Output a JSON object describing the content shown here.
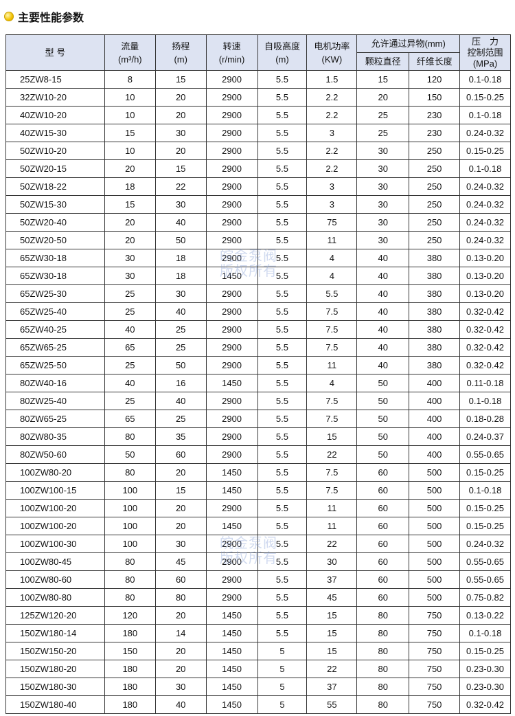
{
  "title": "主要性能参数",
  "headers": {
    "model": "型 号",
    "flow": "流量",
    "flow_unit": "(m³/h)",
    "head": "扬程",
    "head_unit": "(m)",
    "speed": "转速",
    "speed_unit": "(r/min)",
    "suction": "自吸高度",
    "suction_unit": "(m)",
    "power": "电机功率",
    "power_unit": "(KW)",
    "passage": "允许通过异物(mm)",
    "particle": "颗粒直径",
    "fiber": "纤维长度",
    "pressure": "压　力",
    "pressure2": "控制范围",
    "pressure_unit": "(MPa)"
  },
  "watermark": [
    "皖金泵阀",
    "版权所有"
  ],
  "rows": [
    [
      "25ZW8-15",
      "8",
      "15",
      "2900",
      "5.5",
      "1.5",
      "15",
      "120",
      "0.1-0.18"
    ],
    [
      "32ZW10-20",
      "10",
      "20",
      "2900",
      "5.5",
      "2.2",
      "20",
      "150",
      "0.15-0.25"
    ],
    [
      "40ZW10-20",
      "10",
      "20",
      "2900",
      "5.5",
      "2.2",
      "25",
      "230",
      "0.1-0.18"
    ],
    [
      "40ZW15-30",
      "15",
      "30",
      "2900",
      "5.5",
      "3",
      "25",
      "230",
      "0.24-0.32"
    ],
    [
      "50ZW10-20",
      "10",
      "20",
      "2900",
      "5.5",
      "2.2",
      "30",
      "250",
      "0.15-0.25"
    ],
    [
      "50ZW20-15",
      "20",
      "15",
      "2900",
      "5.5",
      "2.2",
      "30",
      "250",
      "0.1-0.18"
    ],
    [
      "50ZW18-22",
      "18",
      "22",
      "2900",
      "5.5",
      "3",
      "30",
      "250",
      "0.24-0.32"
    ],
    [
      "50ZW15-30",
      "15",
      "30",
      "2900",
      "5.5",
      "3",
      "30",
      "250",
      "0.24-0.32"
    ],
    [
      "50ZW20-40",
      "20",
      "40",
      "2900",
      "5.5",
      "75",
      "30",
      "250",
      "0.24-0.32"
    ],
    [
      "50ZW20-50",
      "20",
      "50",
      "2900",
      "5.5",
      "11",
      "30",
      "250",
      "0.24-0.32"
    ],
    [
      "65ZW30-18",
      "30",
      "18",
      "2900",
      "5.5",
      "4",
      "40",
      "380",
      "0.13-0.20"
    ],
    [
      "65ZW30-18",
      "30",
      "18",
      "1450",
      "5.5",
      "4",
      "40",
      "380",
      "0.13-0.20"
    ],
    [
      "65ZW25-30",
      "25",
      "30",
      "2900",
      "5.5",
      "5.5",
      "40",
      "380",
      "0.13-0.20"
    ],
    [
      "65ZW25-40",
      "25",
      "40",
      "2900",
      "5.5",
      "7.5",
      "40",
      "380",
      "0.32-0.42"
    ],
    [
      "65ZW40-25",
      "40",
      "25",
      "2900",
      "5.5",
      "7.5",
      "40",
      "380",
      "0.32-0.42"
    ],
    [
      "65ZW65-25",
      "65",
      "25",
      "2900",
      "5.5",
      "7.5",
      "40",
      "380",
      "0.32-0.42"
    ],
    [
      "65ZW25-50",
      "25",
      "50",
      "2900",
      "5.5",
      "11",
      "40",
      "380",
      "0.32-0.42"
    ],
    [
      "80ZW40-16",
      "40",
      "16",
      "1450",
      "5.5",
      "4",
      "50",
      "400",
      "0.11-0.18"
    ],
    [
      "80ZW25-40",
      "25",
      "40",
      "2900",
      "5.5",
      "7.5",
      "50",
      "400",
      "0.1-0.18"
    ],
    [
      "80ZW65-25",
      "65",
      "25",
      "2900",
      "5.5",
      "7.5",
      "50",
      "400",
      "0.18-0.28"
    ],
    [
      "80ZW80-35",
      "80",
      "35",
      "2900",
      "5.5",
      "15",
      "50",
      "400",
      "0.24-0.37"
    ],
    [
      "80ZW50-60",
      "50",
      "60",
      "2900",
      "5.5",
      "22",
      "50",
      "400",
      "0.55-0.65"
    ],
    [
      "100ZW80-20",
      "80",
      "20",
      "1450",
      "5.5",
      "7.5",
      "60",
      "500",
      "0.15-0.25"
    ],
    [
      "100ZW100-15",
      "100",
      "15",
      "1450",
      "5.5",
      "7.5",
      "60",
      "500",
      "0.1-0.18"
    ],
    [
      "100ZW100-20",
      "100",
      "20",
      "2900",
      "5.5",
      "11",
      "60",
      "500",
      "0.15-0.25"
    ],
    [
      "100ZW100-20",
      "100",
      "20",
      "1450",
      "5.5",
      "11",
      "60",
      "500",
      "0.15-0.25"
    ],
    [
      "100ZW100-30",
      "100",
      "30",
      "2900",
      "5.5",
      "22",
      "60",
      "500",
      "0.24-0.32"
    ],
    [
      "100ZW80-45",
      "80",
      "45",
      "2900",
      "5.5",
      "30",
      "60",
      "500",
      "0.55-0.65"
    ],
    [
      "100ZW80-60",
      "80",
      "60",
      "2900",
      "5.5",
      "37",
      "60",
      "500",
      "0.55-0.65"
    ],
    [
      "100ZW80-80",
      "80",
      "80",
      "2900",
      "5.5",
      "45",
      "60",
      "500",
      "0.75-0.82"
    ],
    [
      "125ZW120-20",
      "120",
      "20",
      "1450",
      "5.5",
      "15",
      "80",
      "750",
      "0.13-0.22"
    ],
    [
      "150ZW180-14",
      "180",
      "14",
      "1450",
      "5.5",
      "15",
      "80",
      "750",
      "0.1-0.18"
    ],
    [
      "150ZW150-20",
      "150",
      "20",
      "1450",
      "5",
      "15",
      "80",
      "750",
      "0.15-0.25"
    ],
    [
      "150ZW180-20",
      "180",
      "20",
      "1450",
      "5",
      "22",
      "80",
      "750",
      "0.23-0.30"
    ],
    [
      "150ZW180-30",
      "180",
      "30",
      "1450",
      "5",
      "37",
      "80",
      "750",
      "0.23-0.30"
    ],
    [
      "150ZW180-40",
      "180",
      "40",
      "1450",
      "5",
      "55",
      "80",
      "750",
      "0.32-0.42"
    ]
  ]
}
